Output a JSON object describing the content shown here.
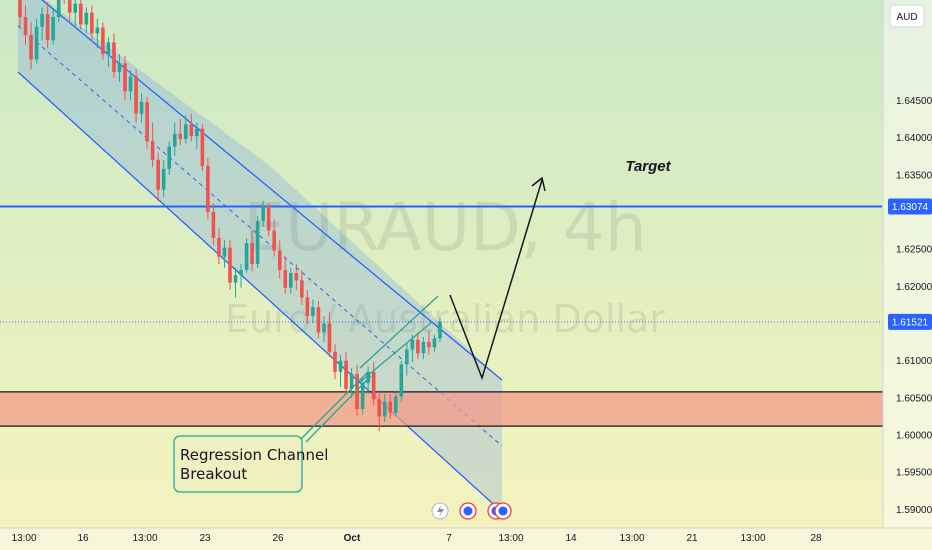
{
  "chart_data": {
    "type": "candlestick",
    "symbol_watermark": "EURAUD, 4h",
    "description_watermark": "Euro / Australian Dollar",
    "currency_label": "AUD",
    "y_range": [
      1.5875,
      1.6585
    ],
    "y_ticks": [
      1.59,
      1.595,
      1.6,
      1.605,
      1.61,
      1.615,
      1.62,
      1.625,
      1.63,
      1.635,
      1.64,
      1.645
    ],
    "y_tick_labels": [
      "1.59000",
      "1.59500",
      "1.60000",
      "1.60500",
      "1.61000",
      "",
      "1.62000",
      "1.62500",
      "",
      "1.63500",
      "1.64000",
      "1.64500"
    ],
    "x_labels": [
      "13:00",
      "16",
      "13:00",
      "23",
      "26",
      "Oct",
      "7",
      "13:00",
      "14",
      "13:00",
      "21",
      "13:00",
      "28"
    ],
    "price_badges": [
      {
        "label": "1.63074",
        "value": 1.63074,
        "color": "#2962ff"
      },
      {
        "label": "1.61521",
        "value": 1.61521,
        "color": "#2962ff"
      }
    ],
    "target_label": "Target",
    "target_level": 1.63074,
    "current_price": 1.61521,
    "support_zone": [
      1.6012,
      1.6058
    ],
    "annotation": "Regression Channel\nBreakout",
    "candles": [
      [
        1.6592,
        1.6612,
        1.6548,
        1.6562
      ],
      [
        1.6562,
        1.6578,
        1.6525,
        1.6538
      ],
      [
        1.6538,
        1.6555,
        1.6492,
        1.6505
      ],
      [
        1.6505,
        1.656,
        1.65,
        1.6549
      ],
      [
        1.6549,
        1.6575,
        1.653,
        1.6566
      ],
      [
        1.6566,
        1.6582,
        1.652,
        1.6531
      ],
      [
        1.6531,
        1.6572,
        1.6525,
        1.6562
      ],
      [
        1.6562,
        1.661,
        1.6555,
        1.6598
      ],
      [
        1.6598,
        1.6622,
        1.658,
        1.659
      ],
      [
        1.659,
        1.66,
        1.6555,
        1.6568
      ],
      [
        1.6568,
        1.659,
        1.655,
        1.658
      ],
      [
        1.658,
        1.6592,
        1.6545,
        1.6552
      ],
      [
        1.6552,
        1.6575,
        1.654,
        1.6568
      ],
      [
        1.6568,
        1.6578,
        1.653,
        1.654
      ],
      [
        1.654,
        1.656,
        1.652,
        1.6548
      ],
      [
        1.6548,
        1.6555,
        1.6505,
        1.6512
      ],
      [
        1.6512,
        1.6535,
        1.6495,
        1.6528
      ],
      [
        1.6528,
        1.654,
        1.648,
        1.6488
      ],
      [
        1.6488,
        1.6512,
        1.6475,
        1.65
      ],
      [
        1.65,
        1.651,
        1.645,
        1.6462
      ],
      [
        1.6462,
        1.649,
        1.645,
        1.6482
      ],
      [
        1.6482,
        1.6492,
        1.642,
        1.6432
      ],
      [
        1.6432,
        1.646,
        1.642,
        1.6448
      ],
      [
        1.6448,
        1.6455,
        1.6385,
        1.6395
      ],
      [
        1.6395,
        1.642,
        1.636,
        1.637
      ],
      [
        1.637,
        1.638,
        1.6315,
        1.633
      ],
      [
        1.633,
        1.637,
        1.632,
        1.6358
      ],
      [
        1.6358,
        1.6395,
        1.635,
        1.6388
      ],
      [
        1.6388,
        1.642,
        1.6375,
        1.6405
      ],
      [
        1.6405,
        1.6425,
        1.639,
        1.6398
      ],
      [
        1.6398,
        1.643,
        1.6392,
        1.6418
      ],
      [
        1.6418,
        1.6432,
        1.6395,
        1.6402
      ],
      [
        1.6402,
        1.642,
        1.6385,
        1.6412
      ],
      [
        1.6412,
        1.6418,
        1.6355,
        1.6362
      ],
      [
        1.6362,
        1.6372,
        1.629,
        1.63
      ],
      [
        1.63,
        1.6312,
        1.6255,
        1.6265
      ],
      [
        1.6265,
        1.6278,
        1.623,
        1.624
      ],
      [
        1.624,
        1.6262,
        1.6225,
        1.6252
      ],
      [
        1.6252,
        1.6262,
        1.6195,
        1.6205
      ],
      [
        1.6205,
        1.6225,
        1.6185,
        1.6215
      ],
      [
        1.6215,
        1.623,
        1.6198,
        1.6222
      ],
      [
        1.6222,
        1.6265,
        1.6218,
        1.6258
      ],
      [
        1.6258,
        1.6275,
        1.622,
        1.623
      ],
      [
        1.623,
        1.6295,
        1.6225,
        1.6288
      ],
      [
        1.6288,
        1.6315,
        1.628,
        1.6308
      ],
      [
        1.6308,
        1.6312,
        1.6268,
        1.6275
      ],
      [
        1.6275,
        1.629,
        1.624,
        1.6248
      ],
      [
        1.6248,
        1.6262,
        1.621,
        1.6222
      ],
      [
        1.6222,
        1.624,
        1.619,
        1.6198
      ],
      [
        1.6198,
        1.6225,
        1.619,
        1.6218
      ],
      [
        1.6218,
        1.623,
        1.6195,
        1.6208
      ],
      [
        1.6208,
        1.6222,
        1.6175,
        1.6185
      ],
      [
        1.6185,
        1.6195,
        1.615,
        1.616
      ],
      [
        1.616,
        1.6182,
        1.615,
        1.6172
      ],
      [
        1.6172,
        1.618,
        1.613,
        1.6138
      ],
      [
        1.6138,
        1.616,
        1.6125,
        1.615
      ],
      [
        1.615,
        1.6165,
        1.6105,
        1.6112
      ],
      [
        1.6112,
        1.6122,
        1.6075,
        1.6085
      ],
      [
        1.6085,
        1.6108,
        1.6065,
        1.61
      ],
      [
        1.61,
        1.6112,
        1.6055,
        1.6062
      ],
      [
        1.6062,
        1.609,
        1.605,
        1.6082
      ],
      [
        1.6082,
        1.6095,
        1.6025,
        1.6035
      ],
      [
        1.6035,
        1.6078,
        1.6028,
        1.607
      ],
      [
        1.607,
        1.6092,
        1.6055,
        1.6085
      ],
      [
        1.6085,
        1.6098,
        1.604,
        1.6048
      ],
      [
        1.6048,
        1.606,
        1.6005,
        1.6025
      ],
      [
        1.6025,
        1.6055,
        1.6018,
        1.6045
      ],
      [
        1.6045,
        1.6055,
        1.6022,
        1.603
      ],
      [
        1.603,
        1.606,
        1.6025,
        1.6052
      ],
      [
        1.6052,
        1.61,
        1.6045,
        1.6095
      ],
      [
        1.6095,
        1.6125,
        1.608,
        1.6115
      ],
      [
        1.6115,
        1.6135,
        1.6098,
        1.6128
      ],
      [
        1.6128,
        1.6138,
        1.6102,
        1.611
      ],
      [
        1.611,
        1.6132,
        1.6102,
        1.6125
      ],
      [
        1.6125,
        1.614,
        1.6108,
        1.6118
      ],
      [
        1.6118,
        1.6135,
        1.6112,
        1.613
      ],
      [
        1.613,
        1.6158,
        1.6125,
        1.6152
      ]
    ]
  }
}
